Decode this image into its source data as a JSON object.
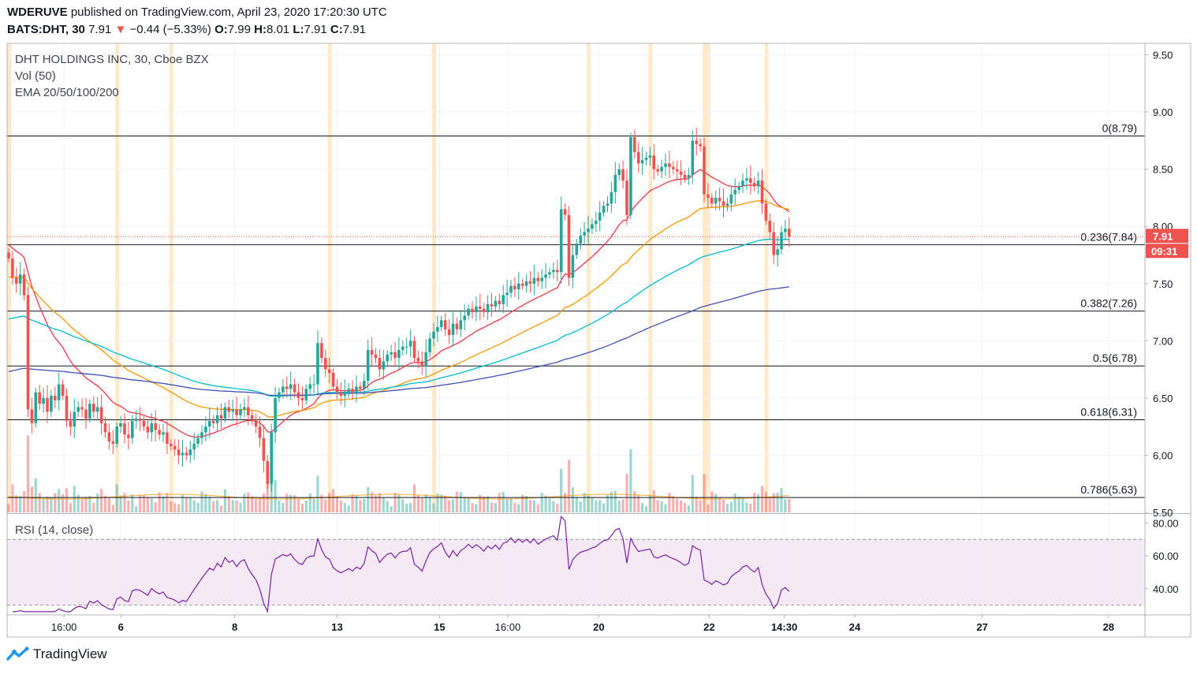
{
  "header": {
    "user": "WDERUVE",
    "published": "published on TradingView.com, April 23, 2020 17:20:30 UTC",
    "symbol": "BATS:DHT, 30",
    "last": "7.91",
    "arrow": "▼",
    "change": "−0.44 (−5.33%)",
    "o_label": "O:",
    "o_value": "7.99",
    "h_label": "H:",
    "h_value": "8.01",
    "l_label": "L:",
    "l_value": "7.91",
    "c_label": "C:",
    "c_value": "7.91"
  },
  "legend": {
    "title": "DHT HOLDINGS INC, 30, Cboe BZX",
    "vol": "Vol (50)",
    "ema": "EMA 20/50/100/200",
    "rsi": "RSI (14, close)"
  },
  "badges": {
    "price": "7.91",
    "countdown": "09:31"
  },
  "footer": {
    "brand": "TradingView",
    "logo_icon": "tradingview-logo-icon"
  },
  "colors": {
    "up": "#26a69a",
    "down": "#ef5350",
    "ema20": "#f23645",
    "ema50": "#ff9800",
    "ema100": "#00bcd4",
    "ema200": "#3f51b5",
    "rsi": "#7b1fa2",
    "session": "#ffe0b2"
  },
  "chart_data": {
    "type": "candlestick",
    "title": "DHT HOLDINGS INC, 30, Cboe BZX",
    "ylim": [
      5.5,
      9.6
    ],
    "y_ticks": [
      9.5,
      9.0,
      8.5,
      8.0,
      7.5,
      7.0,
      6.5,
      6.0,
      5.5
    ],
    "y_tick_labels": [
      "9.50",
      "9.00",
      "8.50",
      "8.00",
      "7.50",
      "7.00",
      "6.50",
      "6.00",
      "5.50"
    ],
    "x_ticks": [
      "16:00",
      "6",
      "8",
      "13",
      "15",
      "16:00",
      "20",
      "22",
      "14:30",
      "24",
      "27",
      "28"
    ],
    "x_tick_bold": [
      false,
      true,
      true,
      true,
      true,
      false,
      true,
      true,
      true,
      true,
      true,
      true
    ],
    "x_tick_pos": [
      0.05,
      0.1,
      0.2,
      0.29,
      0.38,
      0.44,
      0.52,
      0.617,
      0.683,
      0.745,
      0.857,
      0.968
    ],
    "fib_levels": [
      {
        "label": "0(8.79)",
        "value": 8.79
      },
      {
        "label": "0.236(7.84)",
        "value": 7.84
      },
      {
        "label": "0.382(7.26)",
        "value": 7.26
      },
      {
        "label": "0.5(6.78)",
        "value": 6.78
      },
      {
        "label": "0.618(6.31)",
        "value": 6.31
      },
      {
        "label": "0.786(5.63)",
        "value": 5.63
      }
    ],
    "current_price": 7.91,
    "closes": [
      7.72,
      7.55,
      7.5,
      7.58,
      7.4,
      6.4,
      6.28,
      6.55,
      6.45,
      6.5,
      6.38,
      6.52,
      6.48,
      6.62,
      6.52,
      6.3,
      6.25,
      6.38,
      6.42,
      6.4,
      6.32,
      6.45,
      6.38,
      6.42,
      6.28,
      6.2,
      6.12,
      6.1,
      6.25,
      6.28,
      6.18,
      6.15,
      6.3,
      6.32,
      6.3,
      6.25,
      6.2,
      6.28,
      6.22,
      6.18,
      6.2,
      6.1,
      6.08,
      6.05,
      6.0,
      6.02,
      6.0,
      6.05,
      6.1,
      6.15,
      6.2,
      6.25,
      6.3,
      6.28,
      6.35,
      6.32,
      6.42,
      6.38,
      6.4,
      6.35,
      6.4,
      6.42,
      6.35,
      6.3,
      6.25,
      6.15,
      5.95,
      5.75,
      6.2,
      6.5,
      6.55,
      6.6,
      6.58,
      6.62,
      6.55,
      6.5,
      6.48,
      6.58,
      6.62,
      6.62,
      6.98,
      6.85,
      6.75,
      6.72,
      6.6,
      6.55,
      6.52,
      6.55,
      6.58,
      6.55,
      6.6,
      6.58,
      6.65,
      6.92,
      6.88,
      6.85,
      6.75,
      6.82,
      6.88,
      6.9,
      6.85,
      6.92,
      6.95,
      6.95,
      7.0,
      6.85,
      6.82,
      6.78,
      6.9,
      7.02,
      7.08,
      7.12,
      7.18,
      7.1,
      7.05,
      7.15,
      7.1,
      7.18,
      7.22,
      7.28,
      7.25,
      7.3,
      7.28,
      7.25,
      7.32,
      7.3,
      7.35,
      7.32,
      7.4,
      7.42,
      7.48,
      7.45,
      7.5,
      7.48,
      7.52,
      7.5,
      7.55,
      7.52,
      7.55,
      7.58,
      7.6,
      7.62,
      7.6,
      8.15,
      8.1,
      7.55,
      7.75,
      7.85,
      7.92,
      7.95,
      7.98,
      8.02,
      8.05,
      8.12,
      8.18,
      8.2,
      8.3,
      8.45,
      8.5,
      8.4,
      8.1,
      8.78,
      8.65,
      8.55,
      8.58,
      8.6,
      8.62,
      8.5,
      8.48,
      8.52,
      8.55,
      8.52,
      8.5,
      8.48,
      8.45,
      8.42,
      8.45,
      8.75,
      8.72,
      8.7,
      8.28,
      8.25,
      8.2,
      8.25,
      8.22,
      8.18,
      8.2,
      8.28,
      8.32,
      8.35,
      8.4,
      8.42,
      8.38,
      8.35,
      8.4,
      8.2,
      8.05,
      7.95,
      7.75,
      7.8,
      7.95,
      7.98,
      7.91
    ],
    "ema_periods": [
      20,
      50,
      100,
      200
    ],
    "rsi": {
      "label": "RSI (14, close)",
      "ylim": [
        25,
        85
      ],
      "bands": [
        70,
        30
      ],
      "y_ticks": [
        80,
        60,
        40
      ],
      "y_tick_labels": [
        "80.00",
        "60.00",
        "40.00"
      ]
    }
  }
}
